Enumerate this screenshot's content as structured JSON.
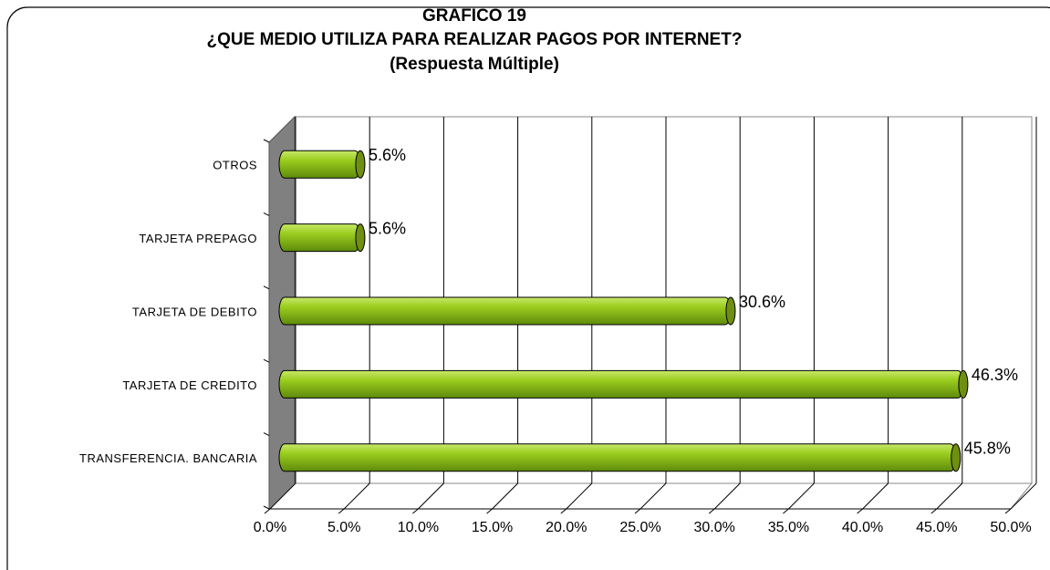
{
  "chart_data": {
    "type": "bar",
    "orientation": "horizontal",
    "title": [
      "GRAFICO 19",
      "¿QUE MEDIO UTILIZA PARA REALIZAR PAGOS POR INTERNET?",
      "(Respuesta Múltiple)"
    ],
    "categories": [
      "OTROS",
      "TARJETA PREPAGO",
      "TARJETA DE DEBITO",
      "TARJETA DE CREDITO",
      "TRANSFERENCIA. BANCARIA"
    ],
    "values": [
      5.6,
      5.6,
      30.6,
      46.3,
      45.8
    ],
    "value_labels": [
      "5.6%",
      "5.6%",
      "30.6%",
      "46.3%",
      "45.8%"
    ],
    "color": "#8fc31f",
    "xlim": [
      0,
      50
    ],
    "xticks": [
      {
        "value": 0,
        "label": "0.0%"
      },
      {
        "value": 5,
        "label": "5.0%"
      },
      {
        "value": 10,
        "label": "10.0%"
      },
      {
        "value": 15,
        "label": "15.0%"
      },
      {
        "value": 20,
        "label": "20.0%"
      },
      {
        "value": 25,
        "label": "25.0%"
      },
      {
        "value": 30,
        "label": "30.0%"
      },
      {
        "value": 35,
        "label": "35.0%"
      },
      {
        "value": 40,
        "label": "40.0%"
      },
      {
        "value": 45,
        "label": "45.0%"
      },
      {
        "value": 50,
        "label": "50.0%"
      }
    ],
    "grid": true
  }
}
